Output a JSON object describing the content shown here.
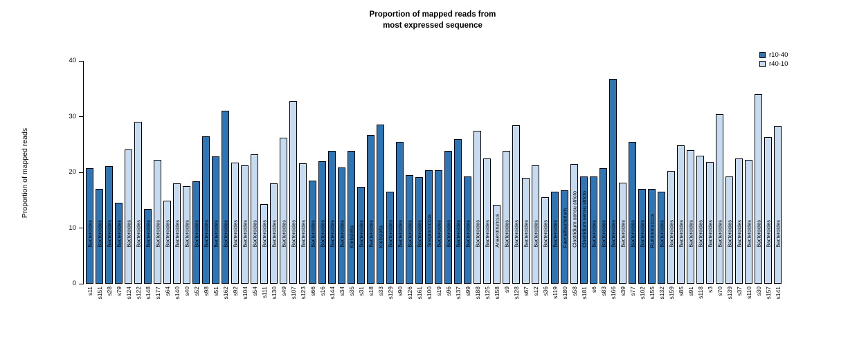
{
  "chart_data": {
    "type": "bar",
    "title": "Proportion of mapped reads from most expressed sequence",
    "title_lines": [
      "Proportion of mapped reads from",
      "most expressed sequence"
    ],
    "xlabel": "",
    "ylabel": "Proportion of mapped reads",
    "ylim": [
      0,
      40
    ],
    "yticks": [
      0,
      10,
      20,
      30,
      40
    ],
    "grid": false,
    "legend_position": "top-right",
    "legend": [
      {
        "label": "r10-40",
        "color": "#2e75b5"
      },
      {
        "label": "r40-10",
        "color": "#c6dbef"
      }
    ],
    "bar_border_color": "#000000",
    "bars": [
      {
        "sample": "s11",
        "taxon": "Bacteroides",
        "value": 20.7,
        "series": "r10-40"
      },
      {
        "sample": "s151",
        "taxon": "Bacteroides",
        "value": 17.0,
        "series": "r10-40"
      },
      {
        "sample": "s28",
        "taxon": "Bacteroides",
        "value": 21.1,
        "series": "r10-40"
      },
      {
        "sample": "s79",
        "taxon": "Bacteroides",
        "value": 14.6,
        "series": "r10-40"
      },
      {
        "sample": "s124",
        "taxon": "Bacteroides",
        "value": 24.1,
        "series": "r40-10"
      },
      {
        "sample": "s122",
        "taxon": "Bacteroides",
        "value": 29.1,
        "series": "r40-10"
      },
      {
        "sample": "s148",
        "taxon": "Bacteroides",
        "value": 13.4,
        "series": "r10-40"
      },
      {
        "sample": "s177",
        "taxon": "Bacteroides",
        "value": 22.2,
        "series": "r40-10"
      },
      {
        "sample": "s64",
        "taxon": "Bacteroides",
        "value": 14.9,
        "series": "r40-10"
      },
      {
        "sample": "s140",
        "taxon": "Bacteroides",
        "value": 18.0,
        "series": "r40-10"
      },
      {
        "sample": "s40",
        "taxon": "Bacteroides",
        "value": 17.5,
        "series": "r40-10"
      },
      {
        "sample": "s52",
        "taxon": "Bacteroides",
        "value": 18.4,
        "series": "r10-40"
      },
      {
        "sample": "s98",
        "taxon": "Bacteroides",
        "value": 26.5,
        "series": "r10-40"
      },
      {
        "sample": "s51",
        "taxon": "Bacteroides",
        "value": 22.9,
        "series": "r10-40"
      },
      {
        "sample": "s162",
        "taxon": "Bacteroides",
        "value": 31.0,
        "series": "r10-40"
      },
      {
        "sample": "s92",
        "taxon": "Bacteroides",
        "value": 21.7,
        "series": "r40-10"
      },
      {
        "sample": "s104",
        "taxon": "Bacteroides",
        "value": 21.2,
        "series": "r40-10"
      },
      {
        "sample": "s54",
        "taxon": "Bacteroides",
        "value": 23.2,
        "series": "r40-10"
      },
      {
        "sample": "s111",
        "taxon": "Bacteroides",
        "value": 14.3,
        "series": "r40-10"
      },
      {
        "sample": "s130",
        "taxon": "Bacteroides",
        "value": 18.0,
        "series": "r40-10"
      },
      {
        "sample": "s49",
        "taxon": "Bacteroides",
        "value": 26.2,
        "series": "r40-10"
      },
      {
        "sample": "s107",
        "taxon": "Bacteroides",
        "value": 32.8,
        "series": "r40-10"
      },
      {
        "sample": "s123",
        "taxon": "Bacteroides",
        "value": 21.6,
        "series": "r40-10"
      },
      {
        "sample": "s66",
        "taxon": "Bacteroides",
        "value": 18.5,
        "series": "r10-40"
      },
      {
        "sample": "s16",
        "taxon": "Bacteroides",
        "value": 22.0,
        "series": "r10-40"
      },
      {
        "sample": "s144",
        "taxon": "Bacteroides",
        "value": 23.9,
        "series": "r10-40"
      },
      {
        "sample": "s34",
        "taxon": "Bacteroides",
        "value": 20.9,
        "series": "r10-40"
      },
      {
        "sample": "s35",
        "taxon": "Klebsiella",
        "value": 23.9,
        "series": "r10-40"
      },
      {
        "sample": "s31",
        "taxon": "Bacteroides",
        "value": 17.4,
        "series": "r10-40"
      },
      {
        "sample": "s18",
        "taxon": "Bacteroides",
        "value": 26.7,
        "series": "r10-40"
      },
      {
        "sample": "s33",
        "taxon": "Klebsiella",
        "value": 28.6,
        "series": "r10-40"
      },
      {
        "sample": "s129",
        "taxon": "Bacteroides",
        "value": 16.5,
        "series": "r10-40"
      },
      {
        "sample": "s90",
        "taxon": "Bacteroides",
        "value": 25.5,
        "series": "r10-40"
      },
      {
        "sample": "s126",
        "taxon": "Bacteroides",
        "value": 19.5,
        "series": "r10-40"
      },
      {
        "sample": "s161",
        "taxon": "Bacteroides",
        "value": 19.1,
        "series": "r10-40"
      },
      {
        "sample": "s100",
        "taxon": "Streptococcus",
        "value": 20.4,
        "series": "r10-40"
      },
      {
        "sample": "s19",
        "taxon": "Bacteroides",
        "value": 20.4,
        "series": "r10-40"
      },
      {
        "sample": "s96",
        "taxon": "Bacteroides",
        "value": 23.8,
        "series": "r10-40"
      },
      {
        "sample": "s137",
        "taxon": "Bacteroides",
        "value": 26.0,
        "series": "r10-40"
      },
      {
        "sample": "s99",
        "taxon": "Bacteroides",
        "value": 19.3,
        "series": "r10-40"
      },
      {
        "sample": "s188",
        "taxon": "Bacteroides",
        "value": 27.4,
        "series": "r40-10"
      },
      {
        "sample": "s125",
        "taxon": "Bacteroides",
        "value": 22.5,
        "series": "r40-10"
      },
      {
        "sample": "s158",
        "taxon": "Anaerotruncus",
        "value": 14.2,
        "series": "r40-10"
      },
      {
        "sample": "s9",
        "taxon": "Bacteroides",
        "value": 23.8,
        "series": "r40-10"
      },
      {
        "sample": "s128",
        "taxon": "Bacteroides",
        "value": 28.4,
        "series": "r40-10"
      },
      {
        "sample": "s67",
        "taxon": "Bacteroides",
        "value": 19.0,
        "series": "r40-10"
      },
      {
        "sample": "s12",
        "taxon": "Bacteroides",
        "value": 21.2,
        "series": "r40-10"
      },
      {
        "sample": "s36",
        "taxon": "Bacteroides",
        "value": 15.5,
        "series": "r40-10"
      },
      {
        "sample": "s119",
        "taxon": "Bacteroides",
        "value": 16.5,
        "series": "r10-40"
      },
      {
        "sample": "s180",
        "taxon": "Faecalibacterium",
        "value": 16.8,
        "series": "r10-40"
      },
      {
        "sample": "s58",
        "taxon": "Clostridium sensu stricto",
        "value": 21.5,
        "series": "r40-10"
      },
      {
        "sample": "s181",
        "taxon": "Clostridium sensu stricto",
        "value": 19.3,
        "series": "r10-40"
      },
      {
        "sample": "s6",
        "taxon": "Bacteroides",
        "value": 19.3,
        "series": "r10-40"
      },
      {
        "sample": "s83",
        "taxon": "Bacteroides",
        "value": 20.7,
        "series": "r10-40"
      },
      {
        "sample": "s166",
        "taxon": "Bacteroides",
        "value": 36.8,
        "series": "r10-40"
      },
      {
        "sample": "s39",
        "taxon": "Bacteroides",
        "value": 18.2,
        "series": "r40-10"
      },
      {
        "sample": "s77",
        "taxon": "Bacteroides",
        "value": 25.5,
        "series": "r10-40"
      },
      {
        "sample": "s102",
        "taxon": "Bacteroides",
        "value": 17.0,
        "series": "r10-40"
      },
      {
        "sample": "s155",
        "taxon": "Ruminococcus",
        "value": 17.0,
        "series": "r10-40"
      },
      {
        "sample": "s132",
        "taxon": "Bacteroides",
        "value": 16.5,
        "series": "r10-40"
      },
      {
        "sample": "s159",
        "taxon": "Bacteroides",
        "value": 20.3,
        "series": "r40-10"
      },
      {
        "sample": "s85",
        "taxon": "Bacteroides",
        "value": 24.8,
        "series": "r40-10"
      },
      {
        "sample": "s91",
        "taxon": "Bacteroides",
        "value": 24.0,
        "series": "r40-10"
      },
      {
        "sample": "s118",
        "taxon": "Bacteroides",
        "value": 23.0,
        "series": "r40-10"
      },
      {
        "sample": "s3",
        "taxon": "Bacteroides",
        "value": 21.9,
        "series": "r40-10"
      },
      {
        "sample": "s70",
        "taxon": "Bacteroides",
        "value": 30.5,
        "series": "r40-10"
      },
      {
        "sample": "s139",
        "taxon": "Bacteroides",
        "value": 19.2,
        "series": "r40-10"
      },
      {
        "sample": "s37",
        "taxon": "Bacteroides",
        "value": 22.5,
        "series": "r40-10"
      },
      {
        "sample": "s110",
        "taxon": "Bacteroides",
        "value": 22.3,
        "series": "r40-10"
      },
      {
        "sample": "s30",
        "taxon": "Bacteroides",
        "value": 34.0,
        "series": "r40-10"
      },
      {
        "sample": "s157",
        "taxon": "Bacteroides",
        "value": 26.3,
        "series": "r40-10"
      },
      {
        "sample": "s141",
        "taxon": "Bacteroides",
        "value": 28.3,
        "series": "r40-10"
      }
    ]
  }
}
